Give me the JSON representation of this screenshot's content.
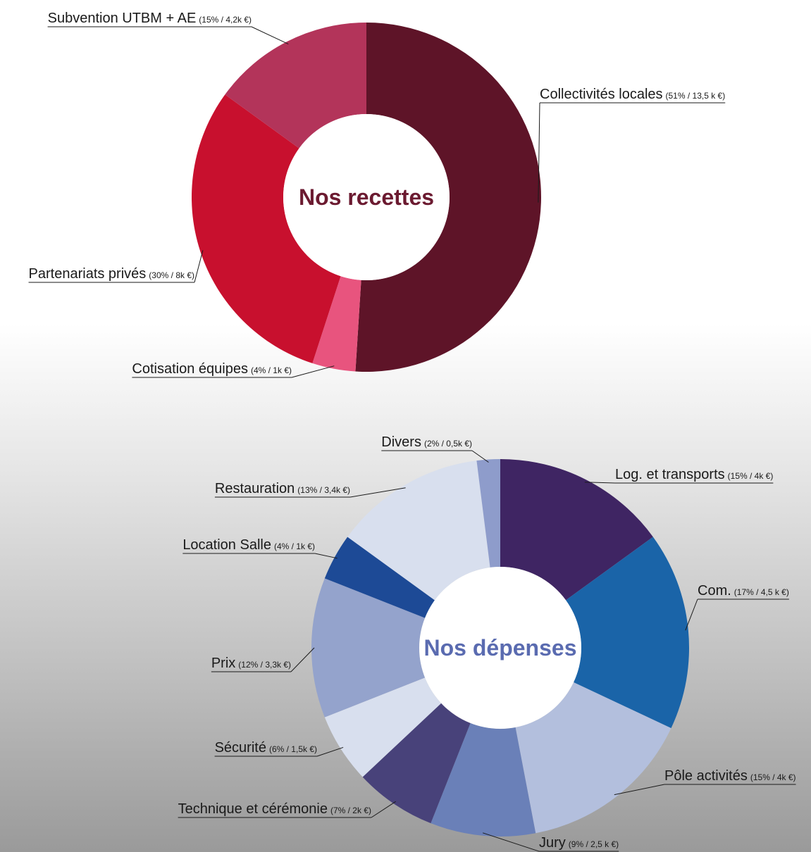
{
  "chart_data": [
    {
      "type": "donut",
      "title": "Nos recettes",
      "title_color": "#6b1a30",
      "categories": [
        "Collectivités locales",
        "Cotisation équipes",
        "Partenariats privés",
        "Subvention UTBM + AE"
      ],
      "values": [
        51,
        4,
        30,
        15
      ],
      "value_labels": [
        "(51% / 13,5 k €)",
        "(4% / 1k €)",
        "(30% / 8k €)",
        "(15% / 4,2k €)"
      ],
      "colors": [
        "#5e1428",
        "#e8547e",
        "#c8102e",
        "#b3345a"
      ]
    },
    {
      "type": "donut",
      "title": "Nos dépenses",
      "title_color": "#5a6bb0",
      "categories": [
        "Log. et transports",
        "Com.",
        "Pôle activités",
        "Jury",
        "Technique et cérémonie",
        "Sécurité",
        "Prix",
        "Location Salle",
        "Restauration",
        "Divers"
      ],
      "values": [
        15,
        17,
        15,
        9,
        7,
        6,
        12,
        4,
        13,
        2
      ],
      "value_labels": [
        "(15% / 4k €)",
        "(17% / 4,5 k €)",
        "(15% / 4k €)",
        "(9% / 2,5 k €)",
        "(7% / 2k €)",
        "(6% / 1,5k €)",
        "(12% / 3,3k €)",
        "(4% / 1k €)",
        "(13% / 3,4k €)",
        "(2% / 0,5k €)"
      ],
      "colors": [
        "#3f2563",
        "#1a64a8",
        "#b3bfdd",
        "#6a80b8",
        "#48427a",
        "#d8dfee",
        "#94a3cc",
        "#1d4a96",
        "#d8dfee",
        "#8e9ccb"
      ]
    }
  ]
}
